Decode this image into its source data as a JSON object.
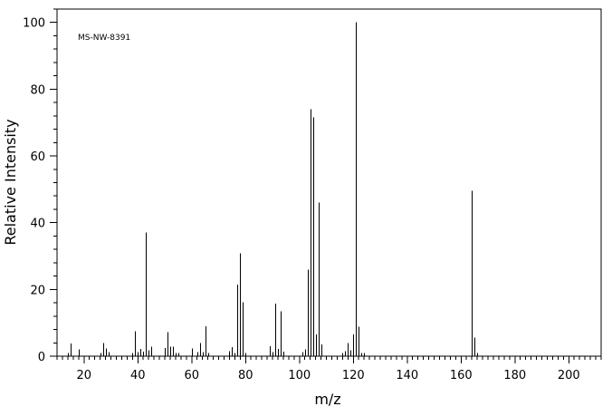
{
  "chart_data": {
    "type": "bar",
    "title": "",
    "annotation": "MS-NW-8391",
    "xlabel": "m/z",
    "ylabel": "Relative Intensity",
    "xlim": [
      10,
      212
    ],
    "ylim": [
      0,
      104
    ],
    "x_ticks": [
      20,
      40,
      60,
      80,
      100,
      120,
      140,
      160,
      180,
      200
    ],
    "x_tick_labels": [
      "20",
      "40",
      "60",
      "80",
      "100",
      "120",
      "140",
      "160",
      "180",
      "200"
    ],
    "y_ticks": [
      0,
      20,
      40,
      60,
      80,
      100
    ],
    "y_tick_labels": [
      "0",
      "20",
      "40",
      "60",
      "80",
      "100"
    ],
    "grid": false,
    "bar_color": "#000000",
    "series": [
      {
        "x": [
          14,
          15,
          18,
          26,
          27,
          28,
          29,
          38,
          39,
          40,
          41,
          42,
          43,
          44,
          45,
          50,
          51,
          52,
          53,
          54,
          55,
          60,
          62,
          63,
          64,
          65,
          66,
          74,
          75,
          76,
          77,
          78,
          79,
          80,
          89,
          90,
          91,
          92,
          93,
          94,
          101,
          102,
          103,
          104,
          105,
          106,
          107,
          108,
          116,
          117,
          118,
          119,
          120,
          121,
          122,
          123,
          124,
          164,
          165,
          166
        ],
        "values": [
          1.0,
          3.8,
          2.0,
          1.0,
          4.0,
          2.3,
          1.2,
          1.0,
          7.5,
          1.2,
          2.2,
          1.3,
          37.0,
          1.8,
          2.8,
          2.5,
          7.2,
          2.8,
          2.8,
          1.0,
          1.0,
          2.3,
          1.2,
          4.0,
          1.2,
          9.0,
          1.0,
          1.5,
          2.7,
          1.0,
          21.5,
          30.8,
          16.2,
          1.0,
          3.0,
          1.2,
          15.7,
          2.2,
          13.5,
          1.3,
          1.2,
          2.0,
          26.0,
          74.0,
          71.5,
          6.5,
          46.0,
          3.5,
          1.0,
          1.5,
          4.0,
          1.8,
          6.5,
          100.0,
          8.8,
          1.0,
          1.0,
          49.5,
          5.5,
          1.0
        ]
      }
    ]
  }
}
